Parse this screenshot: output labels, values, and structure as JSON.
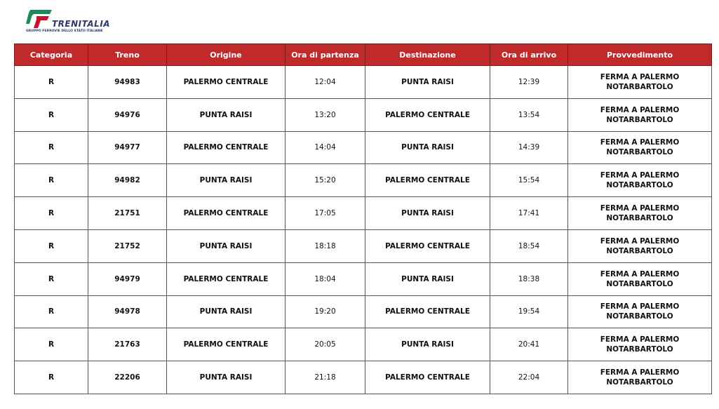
{
  "logo": {
    "name": "TRENITALIA",
    "subtitle": "GRUPPO FERROVIE DELLO STATO ITALIANE",
    "colors": {
      "green": "#1e8a5a",
      "red": "#c8102e",
      "blue": "#2a3a6e"
    }
  },
  "table": {
    "header_color": "#c12a2a",
    "columns": [
      "Categoria",
      "Treno",
      "Origine",
      "Ora di partenza",
      "Destinazione",
      "Ora di arrivo",
      "Provvedimento"
    ],
    "rows": [
      [
        "R",
        "94983",
        "PALERMO CENTRALE",
        "12:04",
        "PUNTA RAISI",
        "12:39",
        "FERMA A PALERMO\nNOTARBARTOLO"
      ],
      [
        "R",
        "94976",
        "PUNTA RAISI",
        "13:20",
        "PALERMO CENTRALE",
        "13:54",
        "FERMA A PALERMO\nNOTARBARTOLO"
      ],
      [
        "R",
        "94977",
        "PALERMO CENTRALE",
        "14:04",
        "PUNTA RAISI",
        "14:39",
        "FERMA A PALERMO\nNOTARBARTOLO"
      ],
      [
        "R",
        "94982",
        "PUNTA RAISI",
        "15:20",
        "PALERMO CENTRALE",
        "15:54",
        "FERMA A PALERMO\nNOTARBARTOLO"
      ],
      [
        "R",
        "21751",
        "PALERMO CENTRALE",
        "17:05",
        "PUNTA RAISI",
        "17:41",
        "FERMA A PALERMO\nNOTARBARTOLO"
      ],
      [
        "R",
        "21752",
        "PUNTA RAISI",
        "18:18",
        "PALERMO CENTRALE",
        "18:54",
        "FERMA A PALERMO\nNOTARBARTOLO"
      ],
      [
        "R",
        "94979",
        "PALERMO CENTRALE",
        "18:04",
        "PUNTA RAISI",
        "18:38",
        "FERMA A PALERMO\nNOTARBARTOLO"
      ],
      [
        "R",
        "94978",
        "PUNTA RAISI",
        "19:20",
        "PALERMO CENTRALE",
        "19:54",
        "FERMA A PALERMO\nNOTARBARTOLO"
      ],
      [
        "R",
        "21763",
        "PALERMO CENTRALE",
        "20:05",
        "PUNTA RAISI",
        "20:41",
        "FERMA A PALERMO\nNOTARBARTOLO"
      ],
      [
        "R",
        "22206",
        "PUNTA RAISI",
        "21:18",
        "PALERMO CENTRALE",
        "22:04",
        "FERMA A PALERMO\nNOTARBARTOLO"
      ]
    ]
  }
}
